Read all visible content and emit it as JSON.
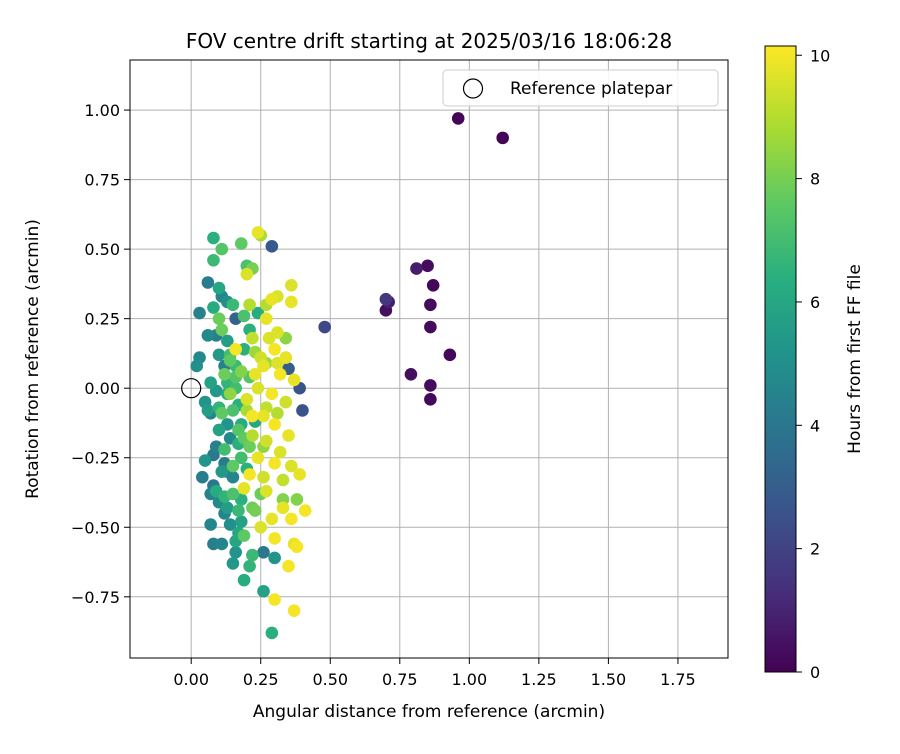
{
  "chart_data": {
    "type": "scatter",
    "title": "FOV centre drift starting at 2025/03/16 18:06:28",
    "xlabel": "Angular distance from reference (arcmin)",
    "ylabel": "Rotation from reference (arcmin)",
    "xlim": [
      -0.22,
      1.93
    ],
    "ylim": [
      -0.97,
      1.18
    ],
    "xticks": [
      0.0,
      0.25,
      0.5,
      0.75,
      1.0,
      1.25,
      1.5,
      1.75
    ],
    "xtick_labels": [
      "0.00",
      "0.25",
      "0.50",
      "0.75",
      "1.00",
      "1.25",
      "1.50",
      "1.75"
    ],
    "yticks": [
      -0.75,
      -0.5,
      -0.25,
      0.0,
      0.25,
      0.5,
      0.75,
      1.0
    ],
    "ytick_labels": [
      "−0.75",
      "−0.50",
      "−0.25",
      "0.00",
      "0.25",
      "0.50",
      "0.75",
      "1.00"
    ],
    "grid": true,
    "legend": {
      "placement": "top-right",
      "entries": [
        "Reference platepar"
      ]
    },
    "reference_point": {
      "x": 0.0,
      "y": 0.0,
      "label": "Reference platepar"
    },
    "colorbar": {
      "label": "Hours from first FF file",
      "colormap": "viridis",
      "range": [
        0,
        10.15
      ],
      "ticks": [
        0,
        2,
        4,
        6,
        8,
        10
      ],
      "tick_labels": [
        "0",
        "2",
        "4",
        "6",
        "8",
        "10"
      ]
    },
    "series": [
      {
        "points": [
          {
            "x": 0.96,
            "y": 0.97,
            "c": 0.1
          },
          {
            "x": 1.12,
            "y": 0.9,
            "c": 0.1
          },
          {
            "x": 0.85,
            "y": 0.44,
            "c": 0.3
          },
          {
            "x": 0.81,
            "y": 0.43,
            "c": 0.8
          },
          {
            "x": 0.87,
            "y": 0.37,
            "c": 0.2
          },
          {
            "x": 0.86,
            "y": 0.3,
            "c": 0.3
          },
          {
            "x": 0.71,
            "y": 0.31,
            "c": 0.9
          },
          {
            "x": 0.7,
            "y": 0.32,
            "c": 1.6
          },
          {
            "x": 0.7,
            "y": 0.28,
            "c": 0.4
          },
          {
            "x": 0.86,
            "y": 0.22,
            "c": 0.3
          },
          {
            "x": 0.93,
            "y": 0.12,
            "c": 0.2
          },
          {
            "x": 0.79,
            "y": 0.05,
            "c": 0.4
          },
          {
            "x": 0.86,
            "y": 0.01,
            "c": 0.3
          },
          {
            "x": 0.86,
            "y": -0.04,
            "c": 0.2
          },
          {
            "x": 0.48,
            "y": 0.22,
            "c": 2.2
          },
          {
            "x": 0.29,
            "y": 0.51,
            "c": 2.8
          },
          {
            "x": 0.39,
            "y": 0.0,
            "c": 2.6
          },
          {
            "x": 0.4,
            "y": -0.08,
            "c": 2.6
          },
          {
            "x": 0.35,
            "y": 0.07,
            "c": 3.0
          },
          {
            "x": 0.16,
            "y": 0.25,
            "c": 3.2
          },
          {
            "x": 0.06,
            "y": 0.38,
            "c": 4.2
          },
          {
            "x": 0.03,
            "y": 0.27,
            "c": 4.4
          },
          {
            "x": 0.11,
            "y": 0.33,
            "c": 4.6
          },
          {
            "x": 0.09,
            "y": 0.19,
            "c": 4.3
          },
          {
            "x": 0.06,
            "y": 0.19,
            "c": 4.8
          },
          {
            "x": 0.13,
            "y": 0.31,
            "c": 5.0
          },
          {
            "x": 0.03,
            "y": 0.11,
            "c": 4.8
          },
          {
            "x": 0.02,
            "y": 0.08,
            "c": 5.0
          },
          {
            "x": 0.12,
            "y": 0.08,
            "c": 4.4
          },
          {
            "x": 0.05,
            "y": -0.05,
            "c": 5.2
          },
          {
            "x": 0.07,
            "y": -0.09,
            "c": 4.6
          },
          {
            "x": 0.09,
            "y": -0.01,
            "c": 5.4
          },
          {
            "x": 0.13,
            "y": -0.13,
            "c": 5.2
          },
          {
            "x": 0.14,
            "y": -0.18,
            "c": 4.8
          },
          {
            "x": 0.09,
            "y": -0.21,
            "c": 4.4
          },
          {
            "x": 0.08,
            "y": -0.24,
            "c": 4.0
          },
          {
            "x": 0.12,
            "y": -0.27,
            "c": 4.2
          },
          {
            "x": 0.04,
            "y": -0.32,
            "c": 4.3
          },
          {
            "x": 0.08,
            "y": -0.35,
            "c": 4.0
          },
          {
            "x": 0.07,
            "y": -0.38,
            "c": 4.5
          },
          {
            "x": 0.13,
            "y": -0.3,
            "c": 4.6
          },
          {
            "x": 0.15,
            "y": -0.32,
            "c": 4.6
          },
          {
            "x": 0.1,
            "y": -0.41,
            "c": 4.8
          },
          {
            "x": 0.12,
            "y": -0.45,
            "c": 4.6
          },
          {
            "x": 0.14,
            "y": -0.49,
            "c": 5.0
          },
          {
            "x": 0.07,
            "y": -0.49,
            "c": 4.6
          },
          {
            "x": 0.08,
            "y": -0.56,
            "c": 4.3
          },
          {
            "x": 0.11,
            "y": -0.56,
            "c": 4.6
          },
          {
            "x": 0.16,
            "y": -0.59,
            "c": 5.2
          },
          {
            "x": 0.15,
            "y": -0.63,
            "c": 5.4
          },
          {
            "x": 0.26,
            "y": -0.59,
            "c": 4.0
          },
          {
            "x": 0.3,
            "y": -0.61,
            "c": 5.2
          },
          {
            "x": 0.26,
            "y": -0.73,
            "c": 5.8
          },
          {
            "x": 0.29,
            "y": -0.88,
            "c": 6.4
          },
          {
            "x": 0.19,
            "y": -0.69,
            "c": 6.2
          },
          {
            "x": 0.21,
            "y": -0.64,
            "c": 6.6
          },
          {
            "x": 0.22,
            "y": -0.6,
            "c": 6.8
          },
          {
            "x": 0.17,
            "y": -0.52,
            "c": 6.0
          },
          {
            "x": 0.09,
            "y": -0.37,
            "c": 6.2
          },
          {
            "x": 0.12,
            "y": -0.39,
            "c": 6.6
          },
          {
            "x": 0.18,
            "y": -0.4,
            "c": 6.4
          },
          {
            "x": 0.17,
            "y": -0.44,
            "c": 6.8
          },
          {
            "x": 0.2,
            "y": -0.29,
            "c": 6.4
          },
          {
            "x": 0.17,
            "y": -0.2,
            "c": 6.4
          },
          {
            "x": 0.18,
            "y": -0.13,
            "c": 6.2
          },
          {
            "x": 0.17,
            "y": -0.06,
            "c": 6.4
          },
          {
            "x": 0.1,
            "y": -0.07,
            "c": 6.6
          },
          {
            "x": 0.13,
            "y": 0.02,
            "c": 6.6
          },
          {
            "x": 0.16,
            "y": 0.08,
            "c": 6.8
          },
          {
            "x": 0.19,
            "y": 0.14,
            "c": 6.4
          },
          {
            "x": 0.21,
            "y": 0.21,
            "c": 6.4
          },
          {
            "x": 0.24,
            "y": 0.27,
            "c": 6.2
          },
          {
            "x": 0.08,
            "y": 0.54,
            "c": 6.4
          },
          {
            "x": 0.08,
            "y": 0.46,
            "c": 6.8
          },
          {
            "x": 0.1,
            "y": 0.36,
            "c": 6.0
          },
          {
            "x": 0.08,
            "y": 0.29,
            "c": 6.2
          },
          {
            "x": 0.13,
            "y": -0.02,
            "c": 6.2
          },
          {
            "x": 0.23,
            "y": -0.12,
            "c": 6.0
          },
          {
            "x": 0.18,
            "y": 0.52,
            "c": 7.6
          },
          {
            "x": 0.11,
            "y": 0.5,
            "c": 7.4
          },
          {
            "x": 0.2,
            "y": 0.44,
            "c": 7.2
          },
          {
            "x": 0.22,
            "y": 0.43,
            "c": 8.0
          },
          {
            "x": 0.1,
            "y": 0.25,
            "c": 7.8
          },
          {
            "x": 0.11,
            "y": 0.21,
            "c": 7.8
          },
          {
            "x": 0.14,
            "y": 0.1,
            "c": 7.6
          },
          {
            "x": 0.12,
            "y": 0.05,
            "c": 7.8
          },
          {
            "x": 0.16,
            "y": 0.04,
            "c": 7.4
          },
          {
            "x": 0.11,
            "y": -0.09,
            "c": 7.6
          },
          {
            "x": 0.15,
            "y": -0.08,
            "c": 7.2
          },
          {
            "x": 0.17,
            "y": -0.15,
            "c": 7.4
          },
          {
            "x": 0.19,
            "y": -0.18,
            "c": 7.6
          },
          {
            "x": 0.21,
            "y": -0.21,
            "c": 7.8
          },
          {
            "x": 0.15,
            "y": -0.28,
            "c": 7.6
          },
          {
            "x": 0.22,
            "y": -0.43,
            "c": 7.8
          },
          {
            "x": 0.23,
            "y": -0.44,
            "c": 8.0
          },
          {
            "x": 0.19,
            "y": -0.53,
            "c": 7.6
          },
          {
            "x": 0.25,
            "y": -0.38,
            "c": 7.8
          },
          {
            "x": 0.33,
            "y": -0.4,
            "c": 8.2
          },
          {
            "x": 0.38,
            "y": -0.4,
            "c": 8.2
          },
          {
            "x": 0.34,
            "y": 0.18,
            "c": 8.4
          },
          {
            "x": 0.23,
            "y": 0.13,
            "c": 8.6
          },
          {
            "x": 0.25,
            "y": 0.55,
            "c": 8.8
          },
          {
            "x": 0.21,
            "y": 0.3,
            "c": 9.0
          },
          {
            "x": 0.2,
            "y": 0.41,
            "c": 9.6
          },
          {
            "x": 0.24,
            "y": 0.56,
            "c": 9.8
          },
          {
            "x": 0.29,
            "y": 0.32,
            "c": 9.8
          },
          {
            "x": 0.36,
            "y": 0.37,
            "c": 9.6
          },
          {
            "x": 0.36,
            "y": 0.31,
            "c": 9.8
          },
          {
            "x": 0.31,
            "y": 0.33,
            "c": 9.6
          },
          {
            "x": 0.27,
            "y": 0.25,
            "c": 9.8
          },
          {
            "x": 0.28,
            "y": 0.18,
            "c": 9.6
          },
          {
            "x": 0.3,
            "y": 0.14,
            "c": 10.0
          },
          {
            "x": 0.26,
            "y": 0.08,
            "c": 9.8
          },
          {
            "x": 0.32,
            "y": 0.05,
            "c": 10.0
          },
          {
            "x": 0.37,
            "y": 0.03,
            "c": 9.8
          },
          {
            "x": 0.24,
            "y": 0.0,
            "c": 9.6
          },
          {
            "x": 0.29,
            "y": -0.02,
            "c": 10.0
          },
          {
            "x": 0.34,
            "y": -0.05,
            "c": 9.4
          },
          {
            "x": 0.26,
            "y": -0.1,
            "c": 9.8
          },
          {
            "x": 0.3,
            "y": -0.13,
            "c": 10.0
          },
          {
            "x": 0.35,
            "y": -0.17,
            "c": 9.8
          },
          {
            "x": 0.27,
            "y": -0.19,
            "c": 9.4
          },
          {
            "x": 0.24,
            "y": -0.25,
            "c": 9.8
          },
          {
            "x": 0.3,
            "y": -0.27,
            "c": 10.0
          },
          {
            "x": 0.36,
            "y": -0.28,
            "c": 9.6
          },
          {
            "x": 0.39,
            "y": -0.31,
            "c": 9.8
          },
          {
            "x": 0.27,
            "y": -0.37,
            "c": 9.6
          },
          {
            "x": 0.33,
            "y": -0.43,
            "c": 9.8
          },
          {
            "x": 0.36,
            "y": -0.47,
            "c": 10.0
          },
          {
            "x": 0.41,
            "y": -0.44,
            "c": 10.0
          },
          {
            "x": 0.29,
            "y": -0.47,
            "c": 9.8
          },
          {
            "x": 0.25,
            "y": -0.5,
            "c": 9.6
          },
          {
            "x": 0.3,
            "y": -0.54,
            "c": 10.0
          },
          {
            "x": 0.37,
            "y": -0.56,
            "c": 9.8
          },
          {
            "x": 0.38,
            "y": -0.57,
            "c": 10.0
          },
          {
            "x": 0.35,
            "y": -0.64,
            "c": 10.0
          },
          {
            "x": 0.3,
            "y": -0.76,
            "c": 10.0
          },
          {
            "x": 0.37,
            "y": -0.8,
            "c": 10.0
          },
          {
            "x": 0.22,
            "y": -0.1,
            "c": 10.0
          },
          {
            "x": 0.2,
            "y": -0.04,
            "c": 9.6
          },
          {
            "x": 0.23,
            "y": 0.05,
            "c": 9.8
          },
          {
            "x": 0.16,
            "y": 0.14,
            "c": 10.0
          },
          {
            "x": 0.25,
            "y": 0.11,
            "c": 9.4
          },
          {
            "x": 0.31,
            "y": 0.09,
            "c": 9.6
          },
          {
            "x": 0.34,
            "y": 0.11,
            "c": 9.8
          },
          {
            "x": 0.27,
            "y": -0.07,
            "c": 9.2
          },
          {
            "x": 0.31,
            "y": -0.09,
            "c": 9.0
          },
          {
            "x": 0.21,
            "y": -0.31,
            "c": 10.0
          },
          {
            "x": 0.19,
            "y": -0.36,
            "c": 9.8
          },
          {
            "x": 0.26,
            "y": -0.32,
            "c": 9.4
          },
          {
            "x": 0.32,
            "y": -0.23,
            "c": 9.6
          },
          {
            "x": 0.22,
            "y": 0.18,
            "c": 9.2
          },
          {
            "x": 0.27,
            "y": 0.3,
            "c": 9.0
          },
          {
            "x": 0.31,
            "y": 0.2,
            "c": 9.6
          },
          {
            "x": 0.33,
            "y": -0.33,
            "c": 9.2
          },
          {
            "x": 0.22,
            "y": -0.17,
            "c": 9.0
          },
          {
            "x": 0.14,
            "y": -0.02,
            "c": 8.4
          },
          {
            "x": 0.18,
            "y": 0.06,
            "c": 8.2
          },
          {
            "x": 0.2,
            "y": -0.08,
            "c": 8.8
          },
          {
            "x": 0.27,
            "y": 0.09,
            "c": 8.6
          },
          {
            "x": 0.26,
            "y": -0.21,
            "c": 8.4
          },
          {
            "x": 0.12,
            "y": -0.22,
            "c": 7.0
          },
          {
            "x": 0.15,
            "y": -0.38,
            "c": 7.2
          },
          {
            "x": 0.14,
            "y": 0.12,
            "c": 7.0
          },
          {
            "x": 0.19,
            "y": 0.26,
            "c": 7.2
          },
          {
            "x": 0.15,
            "y": 0.3,
            "c": 6.8
          },
          {
            "x": 0.13,
            "y": 0.17,
            "c": 5.6
          },
          {
            "x": 0.1,
            "y": 0.12,
            "c": 5.4
          },
          {
            "x": 0.07,
            "y": 0.02,
            "c": 5.8
          },
          {
            "x": 0.06,
            "y": -0.08,
            "c": 5.6
          },
          {
            "x": 0.1,
            "y": -0.15,
            "c": 5.8
          },
          {
            "x": 0.11,
            "y": -0.3,
            "c": 5.4
          },
          {
            "x": 0.05,
            "y": -0.26,
            "c": 5.2
          },
          {
            "x": 0.13,
            "y": -0.43,
            "c": 5.6
          },
          {
            "x": 0.18,
            "y": -0.48,
            "c": 5.8
          },
          {
            "x": 0.16,
            "y": -0.55,
            "c": 6.0
          },
          {
            "x": 0.16,
            "y": 0.0,
            "c": 7.0
          },
          {
            "x": 0.21,
            "y": 0.04,
            "c": 7.4
          },
          {
            "x": 0.18,
            "y": -0.25,
            "c": 7.0
          }
        ]
      }
    ]
  }
}
